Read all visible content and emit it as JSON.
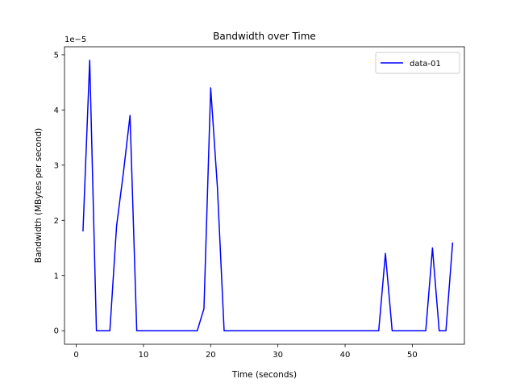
{
  "chart_data": {
    "type": "line",
    "title": "Bandwidth over Time",
    "xlabel": "Time (seconds)",
    "ylabel": "Bandwidth (MBytes per second)",
    "y_scale_label": "1e−5",
    "xlim": [
      -1.75,
      57.75
    ],
    "ylim": [
      -0.245,
      5.145
    ],
    "xticks": [
      0,
      10,
      20,
      30,
      40,
      50
    ],
    "yticks": [
      0,
      1,
      2,
      3,
      4,
      5
    ],
    "xtick_labels": [
      "0",
      "10",
      "20",
      "30",
      "40",
      "50"
    ],
    "ytick_labels": [
      "0",
      "1",
      "2",
      "3",
      "4",
      "5"
    ],
    "grid": false,
    "legend_position": "upper right",
    "series": [
      {
        "name": "data-01",
        "color": "#0000ff",
        "x": [
          1,
          2,
          3,
          4,
          5,
          6,
          7,
          8,
          9,
          10,
          11,
          12,
          13,
          14,
          15,
          16,
          17,
          18,
          19,
          20,
          21,
          22,
          23,
          24,
          25,
          26,
          27,
          28,
          29,
          30,
          31,
          32,
          33,
          34,
          35,
          36,
          37,
          38,
          39,
          40,
          41,
          42,
          43,
          44,
          45,
          46,
          47,
          48,
          49,
          50,
          51,
          52,
          53,
          54,
          55,
          56
        ],
        "y": [
          1.8,
          4.9,
          0,
          0,
          0,
          1.9,
          2.85,
          3.9,
          0,
          0,
          0,
          0,
          0,
          0,
          0,
          0,
          0,
          0,
          0.4,
          4.4,
          2.6,
          0,
          0,
          0,
          0,
          0,
          0,
          0,
          0,
          0,
          0,
          0,
          0,
          0,
          0,
          0,
          0,
          0,
          0,
          0,
          0,
          0,
          0,
          0,
          0,
          1.4,
          0,
          0,
          0,
          0,
          0,
          0,
          1.5,
          0,
          0,
          1.6
        ]
      }
    ]
  }
}
